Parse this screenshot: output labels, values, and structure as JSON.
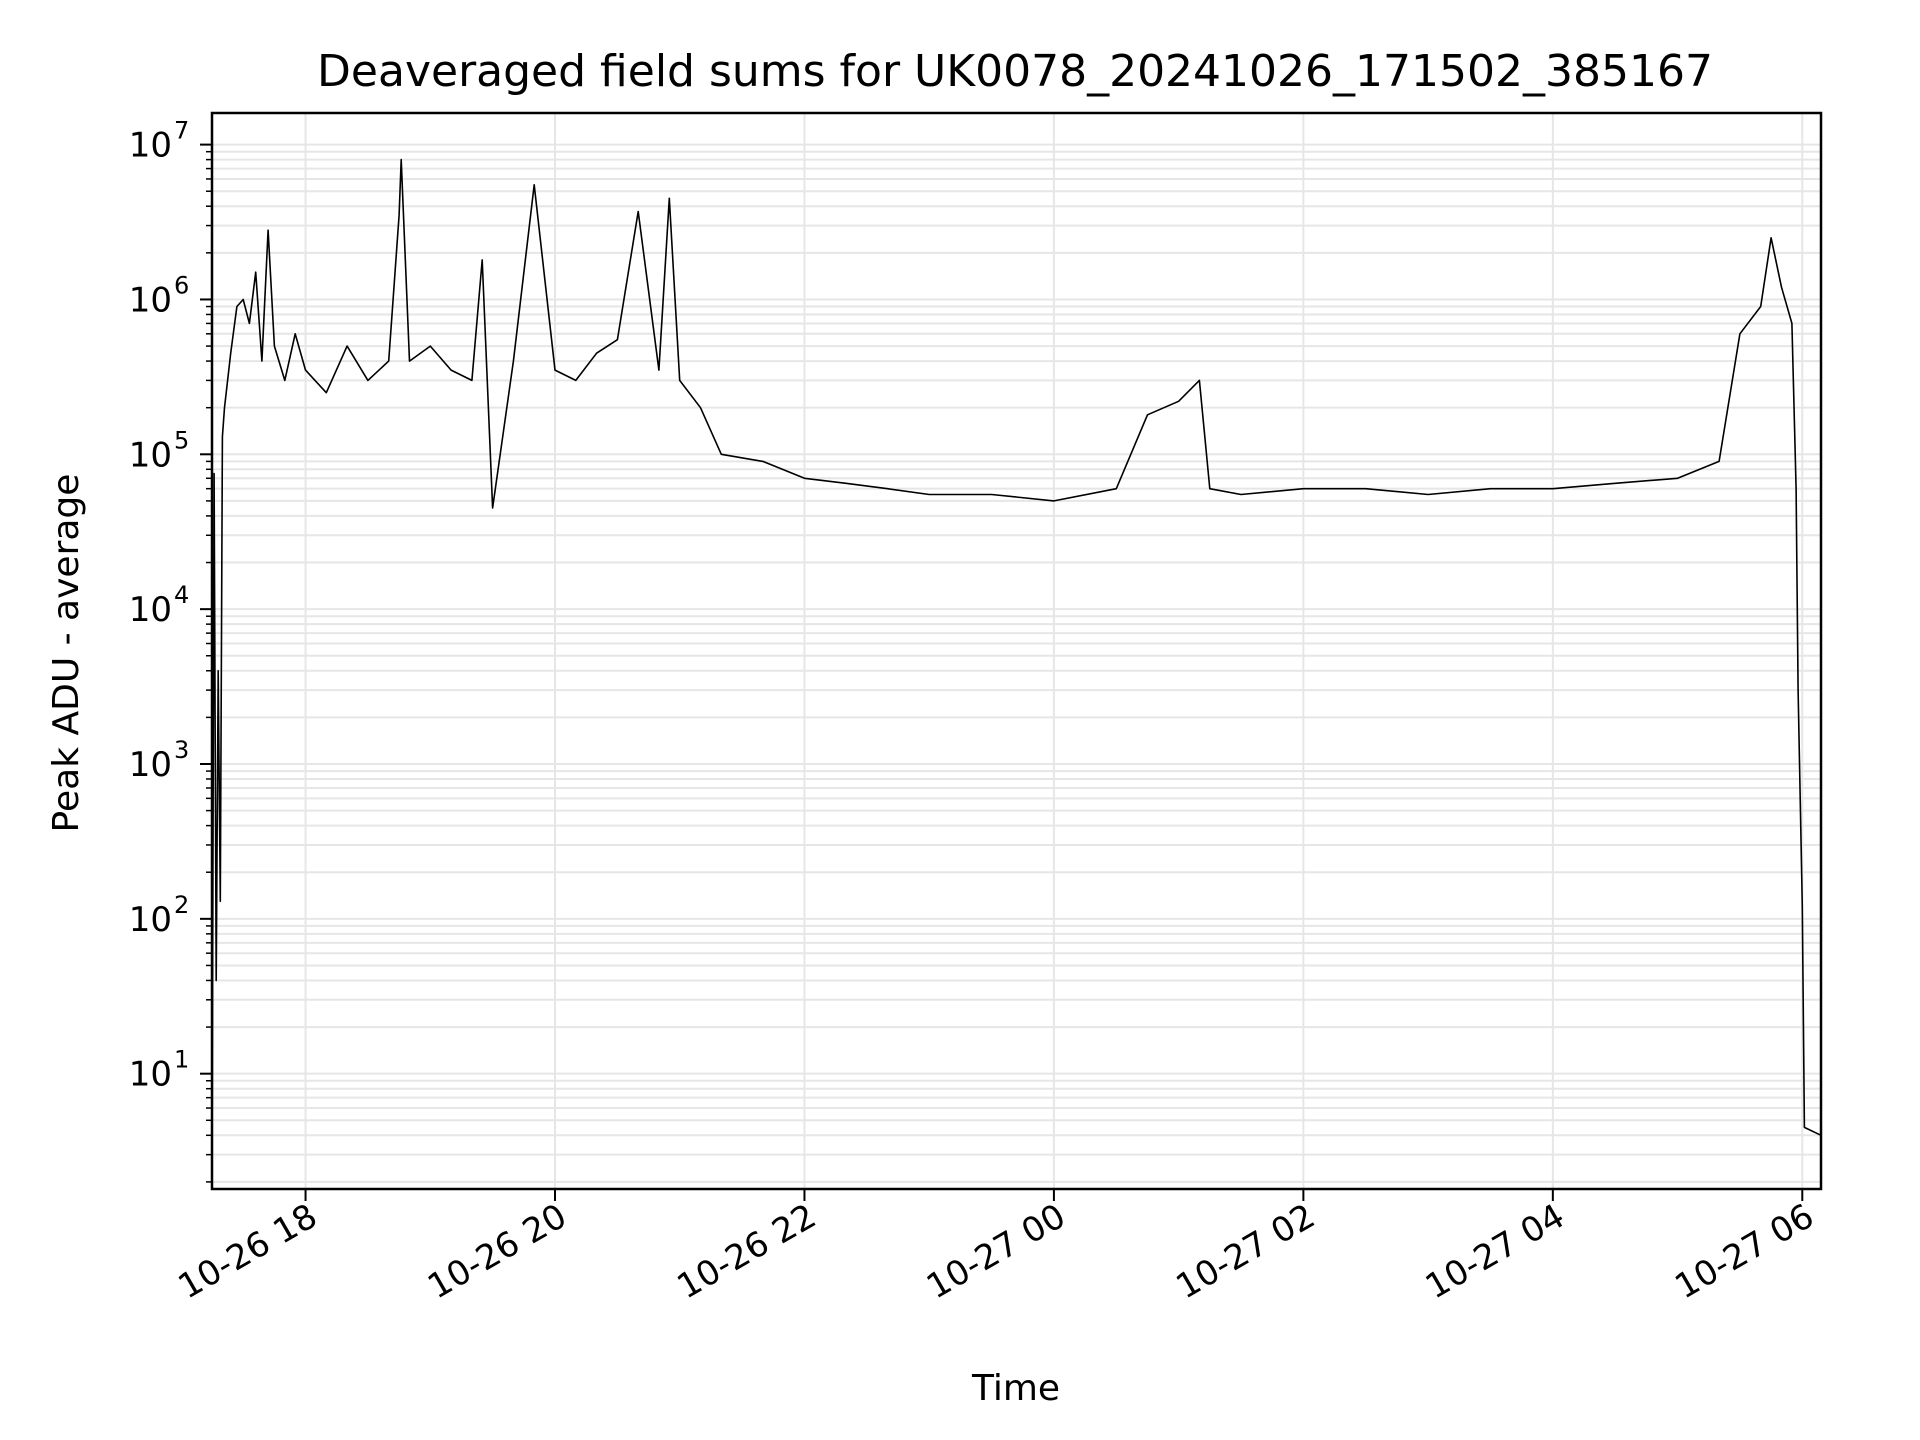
{
  "chart_data": {
    "type": "line",
    "title": "Deaveraged field sums for UK0078_20241026_171502_385167",
    "xlabel": "Time",
    "ylabel": "Peak ADU - average",
    "yscale": "log",
    "ylim": [
      1.8,
      16000000
    ],
    "xlim": [
      "2024-10-26 17:15",
      "2024-10-27 06:09"
    ],
    "grid": true,
    "line_color": "#000000",
    "grid_color": "#e6e6e6",
    "x_ticks": [
      {
        "t": "2024-10-26 18:00",
        "label": "10-26 18"
      },
      {
        "t": "2024-10-26 20:00",
        "label": "10-26 20"
      },
      {
        "t": "2024-10-26 22:00",
        "label": "10-26 22"
      },
      {
        "t": "2024-10-27 00:00",
        "label": "10-27 00"
      },
      {
        "t": "2024-10-27 02:00",
        "label": "10-27 02"
      },
      {
        "t": "2024-10-27 04:00",
        "label": "10-27 04"
      },
      {
        "t": "2024-10-27 06:00",
        "label": "10-27 06"
      }
    ],
    "y_ticks": [
      {
        "value": 10,
        "base": "10",
        "exp": "1"
      },
      {
        "value": 100,
        "base": "10",
        "exp": "2"
      },
      {
        "value": 1000,
        "base": "10",
        "exp": "3"
      },
      {
        "value": 10000,
        "base": "10",
        "exp": "4"
      },
      {
        "value": 100000,
        "base": "10",
        "exp": "5"
      },
      {
        "value": 1000000,
        "base": "10",
        "exp": "6"
      },
      {
        "value": 10000000,
        "base": "10",
        "exp": "7"
      }
    ],
    "series": [
      {
        "values": [
          [
            "2024-10-26 17:15",
            1.8
          ],
          [
            "2024-10-26 17:16",
            75000
          ],
          [
            "2024-10-26 17:17",
            40
          ],
          [
            "2024-10-26 17:18",
            4000
          ],
          [
            "2024-10-26 17:19",
            130
          ],
          [
            "2024-10-26 17:20",
            130000
          ],
          [
            "2024-10-26 17:21",
            200000
          ],
          [
            "2024-10-26 17:24",
            450000
          ],
          [
            "2024-10-26 17:27",
            900000
          ],
          [
            "2024-10-26 17:30",
            1000000
          ],
          [
            "2024-10-26 17:33",
            700000
          ],
          [
            "2024-10-26 17:36",
            1500000
          ],
          [
            "2024-10-26 17:39",
            400000
          ],
          [
            "2024-10-26 17:42",
            2800000
          ],
          [
            "2024-10-26 17:45",
            500000
          ],
          [
            "2024-10-26 17:50",
            300000
          ],
          [
            "2024-10-26 17:55",
            600000
          ],
          [
            "2024-10-26 18:00",
            350000
          ],
          [
            "2024-10-26 18:10",
            250000
          ],
          [
            "2024-10-26 18:20",
            500000
          ],
          [
            "2024-10-26 18:30",
            300000
          ],
          [
            "2024-10-26 18:40",
            400000
          ],
          [
            "2024-10-26 18:45",
            3500000
          ],
          [
            "2024-10-26 18:46",
            8000000
          ],
          [
            "2024-10-26 18:50",
            400000
          ],
          [
            "2024-10-26 19:00",
            500000
          ],
          [
            "2024-10-26 19:10",
            350000
          ],
          [
            "2024-10-26 19:20",
            300000
          ],
          [
            "2024-10-26 19:25",
            1800000
          ],
          [
            "2024-10-26 19:30",
            45000
          ],
          [
            "2024-10-26 19:40",
            400000
          ],
          [
            "2024-10-26 19:50",
            5500000
          ],
          [
            "2024-10-26 20:00",
            350000
          ],
          [
            "2024-10-26 20:10",
            300000
          ],
          [
            "2024-10-26 20:20",
            450000
          ],
          [
            "2024-10-26 20:30",
            550000
          ],
          [
            "2024-10-26 20:40",
            3700000
          ],
          [
            "2024-10-26 20:50",
            350000
          ],
          [
            "2024-10-26 20:55",
            4500000
          ],
          [
            "2024-10-26 21:00",
            300000
          ],
          [
            "2024-10-26 21:10",
            200000
          ],
          [
            "2024-10-26 21:20",
            100000
          ],
          [
            "2024-10-26 21:40",
            90000
          ],
          [
            "2024-10-26 22:00",
            70000
          ],
          [
            "2024-10-26 22:20",
            65000
          ],
          [
            "2024-10-26 22:40",
            60000
          ],
          [
            "2024-10-26 23:00",
            55000
          ],
          [
            "2024-10-26 23:30",
            55000
          ],
          [
            "2024-10-27 00:00",
            50000
          ],
          [
            "2024-10-27 00:30",
            60000
          ],
          [
            "2024-10-27 00:45",
            180000
          ],
          [
            "2024-10-27 01:00",
            220000
          ],
          [
            "2024-10-27 01:10",
            300000
          ],
          [
            "2024-10-27 01:15",
            60000
          ],
          [
            "2024-10-27 01:30",
            55000
          ],
          [
            "2024-10-27 02:00",
            60000
          ],
          [
            "2024-10-27 02:30",
            60000
          ],
          [
            "2024-10-27 03:00",
            55000
          ],
          [
            "2024-10-27 03:30",
            60000
          ],
          [
            "2024-10-27 04:00",
            60000
          ],
          [
            "2024-10-27 04:30",
            65000
          ],
          [
            "2024-10-27 05:00",
            70000
          ],
          [
            "2024-10-27 05:20",
            90000
          ],
          [
            "2024-10-27 05:30",
            600000
          ],
          [
            "2024-10-27 05:40",
            900000
          ],
          [
            "2024-10-27 05:45",
            2500000
          ],
          [
            "2024-10-27 05:50",
            1200000
          ],
          [
            "2024-10-27 05:55",
            700000
          ],
          [
            "2024-10-27 05:57",
            60000
          ],
          [
            "2024-10-27 05:58",
            3000
          ],
          [
            "2024-10-27 06:00",
            120
          ],
          [
            "2024-10-27 06:01",
            4.5
          ],
          [
            "2024-10-27 06:09",
            4
          ]
        ]
      }
    ]
  }
}
